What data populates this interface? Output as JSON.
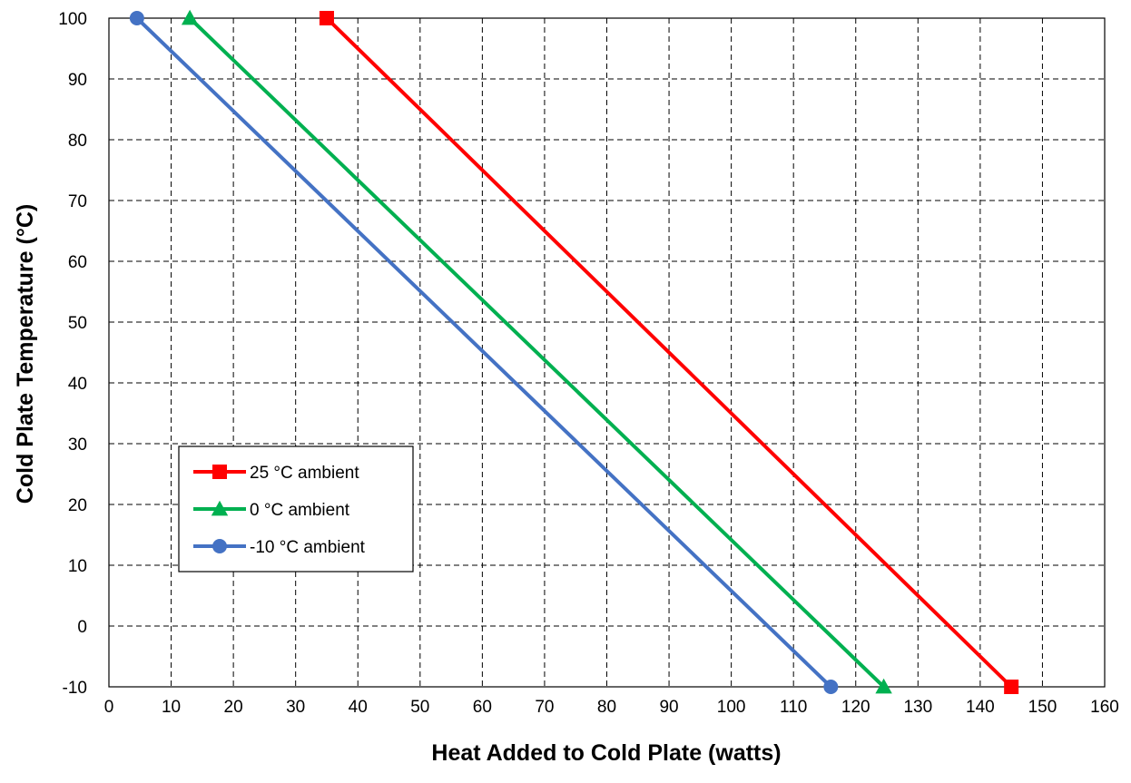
{
  "chart_data": {
    "type": "line",
    "xlabel": "Heat Added to Cold Plate (watts)",
    "ylabel": "Cold Plate Temperature (°C)",
    "xlim": [
      0,
      160
    ],
    "ylim": [
      -10,
      100
    ],
    "xticks": [
      0,
      10,
      20,
      30,
      40,
      50,
      60,
      70,
      80,
      90,
      100,
      110,
      120,
      130,
      140,
      150,
      160
    ],
    "yticks": [
      -10,
      0,
      10,
      20,
      30,
      40,
      50,
      60,
      70,
      80,
      90,
      100
    ],
    "grid": true,
    "legend_position": "lower-left",
    "series": [
      {
        "name": "25 °C ambient",
        "color": "#ff0000",
        "marker": "square",
        "x": [
          35,
          145
        ],
        "y": [
          100,
          -10
        ]
      },
      {
        "name": "0 °C ambient",
        "color": "#00b050",
        "marker": "triangle",
        "x": [
          13,
          124.5
        ],
        "y": [
          100,
          -10
        ]
      },
      {
        "name": "-10 °C ambient",
        "color": "#4472c4",
        "marker": "circle",
        "x": [
          4.5,
          116
        ],
        "y": [
          100,
          -10
        ]
      }
    ]
  }
}
